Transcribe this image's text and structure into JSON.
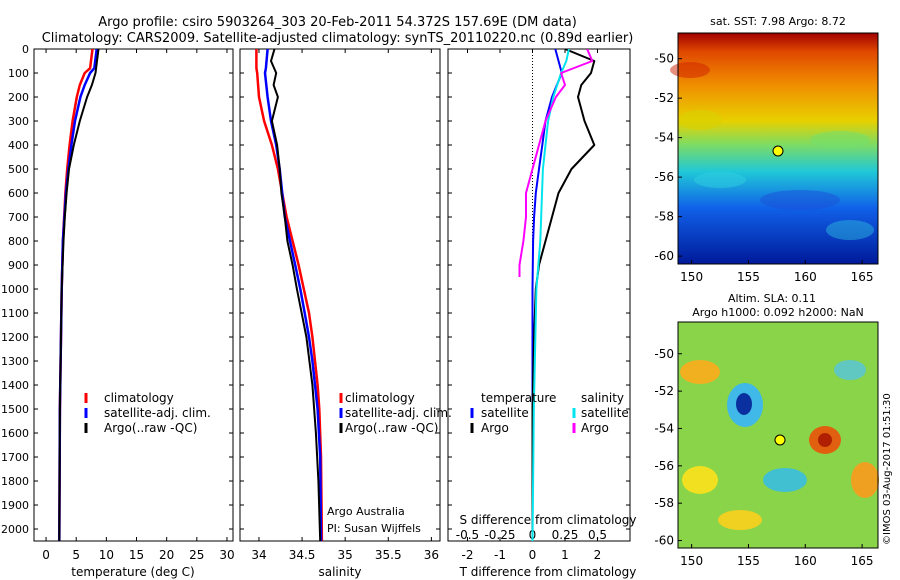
{
  "header": {
    "line1": "Argo profile: csiro 5903264_303 20-Feb-2011 54.372S 157.69E (DM data)",
    "line2": "Climatology: CARS2009. Satellite-adjusted climatology: synTS_20110220.nc (0.89d earlier)"
  },
  "colors": {
    "climatology": "#ff0000",
    "satellite": "#0000ff",
    "argo": "#000000",
    "cyan": "#00e5ee",
    "magenta": "#ff00ff"
  },
  "depth_ticks": [
    "0",
    "100",
    "200",
    "300",
    "400",
    "500",
    "600",
    "700",
    "800",
    "900",
    "1000",
    "1100",
    "1200",
    "1300",
    "1400",
    "1500",
    "1600",
    "1700",
    "1800",
    "1900",
    "2000"
  ],
  "temp_ticks": [
    "0",
    "5",
    "10",
    "15",
    "20",
    "25",
    "30"
  ],
  "sal_ticks": [
    "34",
    "34.5",
    "35",
    "35.5",
    "36"
  ],
  "diff_top_ticks": [
    "-0.5",
    "-0.25",
    "0",
    "0.25",
    "0.5"
  ],
  "diff_bottom_ticks": [
    "-2",
    "-1",
    "0",
    "1",
    "2"
  ],
  "labels": {
    "temp_xlabel": "temperature (deg C)",
    "sal_xlabel": "salinity",
    "diff_xlabel": "T difference from climatology",
    "diff_s_label": "S difference from climatology",
    "credit1": "Argo Australia",
    "credit2": "PI: Susan Wijffels"
  },
  "legend": {
    "climatology": "climatology",
    "satellite": "satellite-adj. clim.",
    "argo": "Argo(..raw -QC)"
  },
  "diff_legend": {
    "temperature": "temperature",
    "salinity": "salinity",
    "satellite": "satellite",
    "argo": "Argo"
  },
  "maps": {
    "sst_title": "sat. SST: 7.98 Argo: 8.72",
    "sla_title1": "Altim. SLA: 0.11",
    "sla_title2": "Argo h1000: 0.092 h2000: NaN",
    "lon_ticks": [
      "150",
      "155",
      "160",
      "165"
    ],
    "lat_ticks": [
      "-50",
      "-52",
      "-54",
      "-56",
      "-58",
      "-60"
    ],
    "stamp": "©IMOS 03-Aug-2017 01:51:30"
  },
  "chart_data": [
    {
      "type": "line",
      "xlabel": "temperature (deg C)",
      "ylim": [
        2050,
        0
      ],
      "xlim": [
        -2,
        31
      ],
      "series": [
        {
          "name": "climatology",
          "depth": [
            0,
            80,
            100,
            150,
            200,
            300,
            400,
            500,
            600,
            800,
            1000,
            1500,
            2050
          ],
          "values": [
            7.7,
            7.3,
            6.4,
            5.6,
            5.1,
            4.4,
            3.9,
            3.5,
            3.2,
            2.8,
            2.6,
            2.3,
            2.2
          ]
        },
        {
          "name": "satellite-adj. clim.",
          "depth": [
            0,
            80,
            100,
            150,
            200,
            300,
            400,
            500,
            600,
            800,
            1000,
            1500,
            2050
          ],
          "values": [
            8.4,
            8.0,
            7.3,
            6.4,
            5.7,
            4.8,
            4.2,
            3.7,
            3.3,
            2.8,
            2.6,
            2.3,
            2.2
          ]
        },
        {
          "name": "Argo(..raw -QC)",
          "depth": [
            0,
            60,
            100,
            150,
            200,
            300,
            400,
            500,
            600,
            700,
            800,
            1000,
            1500,
            2050
          ],
          "values": [
            8.7,
            8.4,
            8.2,
            7.6,
            6.8,
            5.6,
            4.6,
            3.8,
            3.4,
            3.1,
            2.9,
            2.6,
            2.3,
            2.2
          ]
        }
      ]
    },
    {
      "type": "line",
      "xlabel": "salinity",
      "ylim": [
        2050,
        0
      ],
      "xlim": [
        33.78,
        36.1
      ],
      "series": [
        {
          "name": "climatology",
          "depth": [
            0,
            80,
            100,
            200,
            300,
            400,
            500,
            600,
            700,
            800,
            900,
            1000,
            1100,
            1200,
            1300,
            1400,
            1500,
            1700,
            2050
          ],
          "values": [
            33.97,
            33.97,
            33.98,
            34.0,
            34.06,
            34.15,
            34.22,
            34.27,
            34.32,
            34.39,
            34.46,
            34.52,
            34.58,
            34.62,
            34.65,
            34.68,
            34.7,
            34.72,
            34.73
          ]
        },
        {
          "name": "satellite-adj. clim.",
          "depth": [
            0,
            80,
            100,
            200,
            300,
            400,
            500,
            600,
            700,
            800,
            900,
            1000,
            1100,
            1200,
            1300,
            1400,
            1500,
            1700,
            2050
          ],
          "values": [
            34.1,
            34.08,
            34.07,
            34.1,
            34.14,
            34.2,
            34.24,
            34.27,
            34.3,
            34.36,
            34.42,
            34.48,
            34.53,
            34.58,
            34.62,
            34.65,
            34.68,
            34.71,
            34.72
          ]
        },
        {
          "name": "Argo(..raw -QC)",
          "depth": [
            0,
            50,
            100,
            150,
            200,
            300,
            400,
            500,
            600,
            700,
            800,
            900,
            1000,
            1200,
            1400,
            1600,
            1800,
            2050
          ],
          "values": [
            34.18,
            34.14,
            34.2,
            34.17,
            34.22,
            34.15,
            34.21,
            34.24,
            34.26,
            34.3,
            34.33,
            34.39,
            34.44,
            34.55,
            34.62,
            34.66,
            34.69,
            34.71
          ]
        }
      ]
    },
    {
      "type": "line",
      "xlabel": "T difference from climatology",
      "ylim": [
        2050,
        0
      ],
      "xlim": [
        -2.6,
        3.0
      ],
      "series": [
        {
          "name": "temperature satellite",
          "depth": [
            0,
            100,
            200,
            300,
            400,
            500,
            600,
            700,
            800,
            1000,
            1500,
            2050
          ],
          "values": [
            0.7,
            0.9,
            0.6,
            0.4,
            0.3,
            0.2,
            0.1,
            0.05,
            0.02,
            0.0,
            0.0,
            0.0
          ]
        },
        {
          "name": "temperature Argo",
          "depth": [
            0,
            50,
            100,
            150,
            200,
            300,
            400,
            500,
            600,
            700,
            800,
            900,
            1000,
            1200,
            1500,
            2050
          ],
          "values": [
            1.0,
            1.9,
            1.8,
            1.5,
            1.4,
            1.6,
            1.9,
            1.2,
            0.8,
            0.6,
            0.4,
            0.2,
            0.1,
            0.05,
            0.0,
            0.0
          ]
        },
        {
          "name": "salinity satellite",
          "depth": [
            0,
            50,
            100,
            200,
            300,
            400,
            500,
            800,
            1000,
            1500,
            2050
          ],
          "values": [
            0.28,
            0.26,
            0.22,
            0.16,
            0.12,
            0.1,
            0.08,
            0.06,
            0.03,
            0.01,
            0.0
          ]
        },
        {
          "name": "salinity Argo",
          "depth": [
            0,
            50,
            100,
            150,
            200,
            300,
            400,
            500,
            600,
            700,
            800,
            900,
            950
          ],
          "values": [
            0.42,
            0.46,
            0.22,
            0.25,
            0.18,
            0.1,
            0.05,
            0.0,
            -0.05,
            -0.05,
            -0.07,
            -0.1,
            -0.1
          ]
        }
      ]
    }
  ]
}
